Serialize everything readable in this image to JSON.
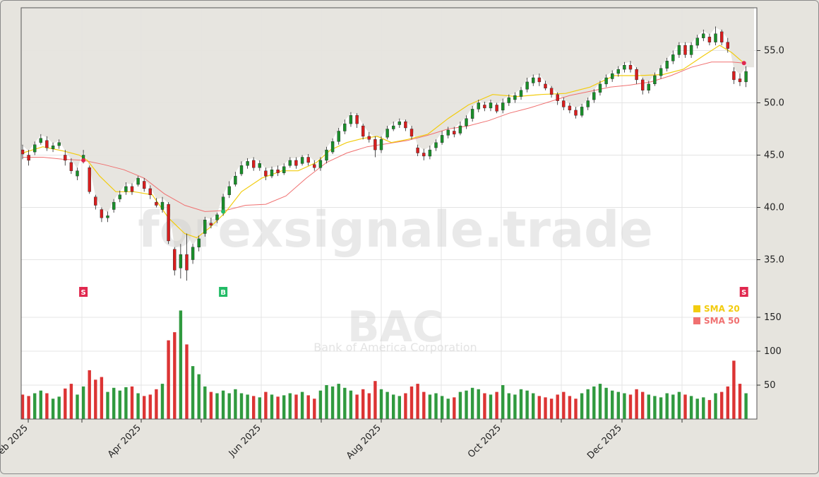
{
  "watermark": {
    "site": "forexsignale.trade",
    "ticker": "BAC",
    "company": "Bank of America Corporation"
  },
  "colors": {
    "background": "#e6e4de",
    "plot_bg": "#ffffff",
    "up": "#1a8f2a",
    "down": "#d81e1e",
    "sma20": "#f2cc0f",
    "sma50": "#f07070",
    "signal_sell": "#e0284e",
    "signal_buy": "#22bb66",
    "grid": "#e4e4e4"
  },
  "chart_data": {
    "type": "candlestick",
    "ticker": "BAC",
    "x_tick_labels": [
      "Feb 2025",
      "Apr 2025",
      "Jun 2025",
      "Aug 2025",
      "Oct 2025",
      "Dec 2025"
    ],
    "price_axis": {
      "ticks": [
        35.0,
        40.0,
        45.0,
        50.0,
        55.0
      ],
      "tick_labels": [
        "35.0",
        "40.0",
        "45.0",
        "50.0",
        "55.0"
      ],
      "range": [
        32.5,
        57.5
      ]
    },
    "volume_axis": {
      "ticks": [
        50,
        100,
        150
      ],
      "tick_labels": [
        "50",
        "100",
        "150"
      ],
      "range": [
        0,
        160
      ]
    },
    "legend": [
      {
        "label": "SMA 20",
        "color": "#f2cc0f"
      },
      {
        "label": "SMA 50",
        "color": "#f07070"
      }
    ],
    "legend_position": "right",
    "sma20_path": [
      [
        0,
        45.2
      ],
      [
        10,
        45.8
      ],
      [
        20,
        45.4
      ],
      [
        28,
        45.0
      ],
      [
        32,
        44.5
      ],
      [
        38,
        43.0
      ],
      [
        46,
        41.5
      ],
      [
        55,
        41.5
      ],
      [
        64,
        41.2
      ],
      [
        72,
        39.0
      ],
      [
        80,
        37.5
      ],
      [
        86,
        37.1
      ],
      [
        92,
        38.0
      ],
      [
        100,
        39.5
      ],
      [
        108,
        41.5
      ],
      [
        118,
        42.8
      ],
      [
        128,
        43.5
      ],
      [
        136,
        43.5
      ],
      [
        145,
        44.3
      ],
      [
        152,
        45.5
      ],
      [
        160,
        46.2
      ],
      [
        168,
        46.6
      ],
      [
        175,
        46.8
      ],
      [
        182,
        46.2
      ],
      [
        190,
        46.5
      ],
      [
        200,
        47.0
      ],
      [
        210,
        48.5
      ],
      [
        220,
        49.8
      ],
      [
        232,
        50.8
      ],
      [
        244,
        50.6
      ],
      [
        256,
        50.8
      ],
      [
        268,
        50.9
      ],
      [
        280,
        51.5
      ],
      [
        292,
        52.6
      ],
      [
        304,
        52.6
      ],
      [
        316,
        52.7
      ],
      [
        326,
        53.2
      ],
      [
        336,
        54.5
      ],
      [
        344,
        55.5
      ],
      [
        350,
        54.8
      ],
      [
        356,
        53.8
      ]
    ],
    "sma50_path": [
      [
        0,
        44.8
      ],
      [
        10,
        44.8
      ],
      [
        20,
        44.6
      ],
      [
        30,
        44.5
      ],
      [
        40,
        44.1
      ],
      [
        50,
        43.6
      ],
      [
        60,
        42.8
      ],
      [
        70,
        41.3
      ],
      [
        80,
        40.2
      ],
      [
        90,
        39.6
      ],
      [
        100,
        39.7
      ],
      [
        110,
        40.2
      ],
      [
        120,
        40.3
      ],
      [
        130,
        41.1
      ],
      [
        140,
        42.8
      ],
      [
        150,
        44.3
      ],
      [
        160,
        45.2
      ],
      [
        170,
        45.8
      ],
      [
        180,
        46.1
      ],
      [
        190,
        46.4
      ],
      [
        200,
        46.9
      ],
      [
        210,
        47.5
      ],
      [
        220,
        47.8
      ],
      [
        230,
        48.3
      ],
      [
        240,
        49.0
      ],
      [
        250,
        49.5
      ],
      [
        260,
        50.1
      ],
      [
        270,
        50.7
      ],
      [
        280,
        51.1
      ],
      [
        290,
        51.5
      ],
      [
        300,
        51.7
      ],
      [
        310,
        52.0
      ],
      [
        320,
        52.6
      ],
      [
        330,
        53.4
      ],
      [
        340,
        53.9
      ],
      [
        350,
        53.9
      ],
      [
        356,
        53.8
      ]
    ],
    "signals": [
      {
        "type": "S",
        "x_index": 30,
        "price": 44.5
      },
      {
        "type": "B",
        "x_index": 99,
        "price": 39.6
      },
      {
        "type": "S",
        "x_index": 356,
        "price": 53.8
      }
    ],
    "candles": [
      [
        0,
        45.5,
        45.1,
        46.0,
        44.6,
        36
      ],
      [
        3,
        45.0,
        44.5,
        45.5,
        44.0,
        34
      ],
      [
        6,
        45.3,
        46.0,
        46.3,
        45.0,
        38
      ],
      [
        9,
        46.2,
        46.6,
        47.0,
        46.0,
        42
      ],
      [
        12,
        46.4,
        45.7,
        46.8,
        45.4,
        38
      ],
      [
        15,
        45.6,
        45.9,
        46.2,
        45.3,
        30
      ],
      [
        18,
        45.9,
        46.2,
        46.5,
        45.6,
        33
      ],
      [
        21,
        45.0,
        44.5,
        45.5,
        44.0,
        45
      ],
      [
        24,
        44.3,
        43.5,
        44.7,
        43.2,
        52
      ],
      [
        27,
        43.0,
        43.5,
        43.8,
        42.6,
        36
      ],
      [
        30,
        44.5,
        45.0,
        45.5,
        44.2,
        48
      ],
      [
        33,
        43.8,
        41.5,
        44.0,
        41.3,
        72
      ],
      [
        36,
        41.0,
        40.2,
        41.2,
        39.8,
        58
      ],
      [
        39,
        39.8,
        39.0,
        40.0,
        38.6,
        62
      ],
      [
        42,
        39.0,
        39.2,
        39.6,
        38.6,
        40
      ],
      [
        45,
        39.8,
        40.5,
        40.8,
        39.5,
        46
      ],
      [
        48,
        40.8,
        41.2,
        41.6,
        40.5,
        42
      ],
      [
        51,
        41.5,
        42.0,
        42.4,
        41.2,
        47
      ],
      [
        54,
        42.0,
        41.5,
        42.3,
        41.2,
        48
      ],
      [
        57,
        42.2,
        42.8,
        43.0,
        42.0,
        38
      ],
      [
        60,
        42.5,
        41.8,
        42.8,
        41.5,
        34
      ],
      [
        63,
        41.8,
        41.2,
        42.1,
        40.8,
        36
      ],
      [
        66,
        40.5,
        40.2,
        40.9,
        40.0,
        44
      ],
      [
        69,
        39.8,
        40.5,
        41.0,
        39.5,
        52
      ],
      [
        72,
        40.3,
        36.8,
        40.5,
        36.5,
        116
      ],
      [
        75,
        36.0,
        34.0,
        36.2,
        33.5,
        128
      ],
      [
        78,
        34.2,
        35.5,
        36.5,
        33.2,
        160
      ],
      [
        81,
        35.5,
        34.0,
        37.5,
        33.0,
        110
      ],
      [
        84,
        35.0,
        36.2,
        36.5,
        34.6,
        78
      ],
      [
        87,
        36.2,
        37.0,
        37.3,
        35.8,
        66
      ],
      [
        90,
        37.5,
        38.8,
        39.1,
        37.2,
        48
      ],
      [
        93,
        38.5,
        38.3,
        39.0,
        38.0,
        40
      ],
      [
        96,
        38.8,
        39.3,
        39.5,
        38.5,
        38
      ],
      [
        99,
        39.5,
        41.0,
        41.3,
        39.2,
        42
      ],
      [
        102,
        41.2,
        42.0,
        42.5,
        40.9,
        38
      ],
      [
        105,
        42.2,
        43.0,
        43.4,
        42.0,
        44
      ],
      [
        108,
        43.2,
        44.0,
        44.4,
        43.0,
        38
      ],
      [
        111,
        44.0,
        44.4,
        44.7,
        43.7,
        36
      ],
      [
        114,
        44.5,
        43.8,
        44.8,
        43.5,
        34
      ],
      [
        117,
        43.8,
        44.2,
        44.5,
        43.5,
        32
      ],
      [
        120,
        43.5,
        43.0,
        43.8,
        42.6,
        40
      ],
      [
        123,
        43.0,
        43.6,
        43.9,
        42.8,
        36
      ],
      [
        126,
        43.6,
        43.3,
        44.0,
        43.0,
        33
      ],
      [
        129,
        43.3,
        43.9,
        44.2,
        43.1,
        35
      ],
      [
        132,
        44.0,
        44.5,
        44.8,
        43.8,
        38
      ],
      [
        135,
        44.5,
        44.0,
        44.8,
        43.7,
        36
      ],
      [
        138,
        44.2,
        44.8,
        45.0,
        44.0,
        40
      ],
      [
        141,
        44.8,
        44.3,
        45.1,
        44.0,
        35
      ],
      [
        144,
        44.1,
        43.8,
        44.5,
        43.5,
        30
      ],
      [
        147,
        43.8,
        44.5,
        44.8,
        43.5,
        42
      ],
      [
        150,
        44.5,
        45.5,
        45.8,
        44.2,
        50
      ],
      [
        153,
        45.3,
        46.3,
        46.6,
        45.1,
        48
      ],
      [
        156,
        46.3,
        47.3,
        47.6,
        46.0,
        52
      ],
      [
        159,
        47.3,
        48.0,
        48.4,
        47.0,
        46
      ],
      [
        162,
        48.0,
        48.8,
        49.1,
        47.7,
        42
      ],
      [
        165,
        48.8,
        48.0,
        49.0,
        47.6,
        36
      ],
      [
        168,
        47.8,
        46.8,
        48.0,
        46.5,
        44
      ],
      [
        171,
        46.8,
        46.5,
        47.2,
        46.2,
        38
      ],
      [
        174,
        46.5,
        45.5,
        46.8,
        44.8,
        56
      ],
      [
        177,
        45.5,
        46.5,
        46.8,
        45.2,
        44
      ],
      [
        180,
        46.7,
        47.5,
        47.8,
        46.5,
        40
      ],
      [
        183,
        47.5,
        47.8,
        48.2,
        47.3,
        36
      ],
      [
        186,
        47.9,
        48.2,
        48.5,
        47.6,
        34
      ],
      [
        189,
        48.2,
        47.6,
        48.4,
        47.3,
        38
      ],
      [
        192,
        47.5,
        46.8,
        47.8,
        46.5,
        48
      ],
      [
        195,
        45.7,
        45.2,
        46.0,
        44.9,
        52
      ],
      [
        198,
        45.2,
        44.9,
        45.6,
        44.5,
        40
      ],
      [
        201,
        44.9,
        45.5,
        45.9,
        44.6,
        36
      ],
      [
        204,
        45.7,
        46.2,
        46.5,
        45.4,
        38
      ],
      [
        207,
        46.2,
        46.9,
        47.3,
        46.0,
        34
      ],
      [
        210,
        46.9,
        47.4,
        47.7,
        46.6,
        30
      ],
      [
        213,
        47.3,
        47.0,
        47.7,
        46.7,
        32
      ],
      [
        216,
        47.1,
        47.8,
        48.2,
        46.9,
        40
      ],
      [
        219,
        47.8,
        48.5,
        48.8,
        47.5,
        42
      ],
      [
        222,
        48.5,
        49.4,
        49.7,
        48.2,
        46
      ],
      [
        225,
        49.4,
        50.0,
        50.3,
        49.1,
        44
      ],
      [
        228,
        49.8,
        49.5,
        50.1,
        49.2,
        38
      ],
      [
        231,
        49.5,
        50.0,
        50.3,
        49.2,
        36
      ],
      [
        234,
        49.8,
        49.2,
        50.0,
        49.0,
        40
      ],
      [
        237,
        49.3,
        50.0,
        50.4,
        49.0,
        50
      ],
      [
        240,
        50.0,
        50.5,
        50.8,
        49.7,
        38
      ],
      [
        243,
        50.3,
        50.7,
        51.0,
        50.0,
        36
      ],
      [
        246,
        50.6,
        51.2,
        51.5,
        50.3,
        44
      ],
      [
        249,
        51.3,
        52.0,
        52.4,
        51.0,
        42
      ],
      [
        252,
        51.9,
        52.4,
        52.7,
        51.6,
        38
      ],
      [
        255,
        52.4,
        52.0,
        52.8,
        51.6,
        34
      ],
      [
        258,
        51.8,
        51.4,
        52.1,
        51.2,
        32
      ],
      [
        261,
        51.4,
        50.8,
        51.6,
        50.5,
        30
      ],
      [
        264,
        50.8,
        50.2,
        51.0,
        49.8,
        36
      ],
      [
        267,
        50.2,
        49.6,
        50.5,
        49.3,
        40
      ],
      [
        270,
        49.7,
        49.3,
        50.0,
        49.0,
        34
      ],
      [
        273,
        49.3,
        48.8,
        49.6,
        48.5,
        30
      ],
      [
        276,
        48.8,
        49.6,
        49.9,
        48.6,
        38
      ],
      [
        279,
        49.6,
        50.2,
        50.5,
        49.3,
        44
      ],
      [
        282,
        50.3,
        51.0,
        51.3,
        50.0,
        48
      ],
      [
        285,
        51.0,
        51.8,
        52.1,
        50.7,
        52
      ],
      [
        288,
        51.8,
        52.4,
        52.7,
        51.5,
        46
      ],
      [
        291,
        52.3,
        52.8,
        53.1,
        52.0,
        42
      ],
      [
        294,
        52.8,
        53.2,
        53.5,
        52.5,
        40
      ],
      [
        297,
        53.2,
        53.6,
        53.9,
        52.9,
        38
      ],
      [
        300,
        53.6,
        53.2,
        54.0,
        52.9,
        36
      ],
      [
        303,
        53.2,
        52.2,
        53.4,
        51.8,
        44
      ],
      [
        306,
        52.2,
        51.2,
        52.4,
        50.8,
        40
      ],
      [
        309,
        51.2,
        51.8,
        52.1,
        50.9,
        36
      ],
      [
        312,
        51.8,
        52.6,
        52.9,
        51.6,
        34
      ],
      [
        315,
        52.6,
        53.3,
        53.6,
        52.3,
        32
      ],
      [
        318,
        53.3,
        54.0,
        54.3,
        53.0,
        38
      ],
      [
        321,
        54.0,
        54.6,
        55.0,
        53.7,
        36
      ],
      [
        324,
        54.6,
        55.5,
        55.8,
        54.3,
        40
      ],
      [
        327,
        55.5,
        54.6,
        55.8,
        54.3,
        36
      ],
      [
        330,
        54.6,
        55.5,
        55.8,
        54.3,
        34
      ],
      [
        333,
        55.5,
        56.2,
        56.5,
        55.2,
        30
      ],
      [
        336,
        56.2,
        56.6,
        57.0,
        55.9,
        32
      ],
      [
        339,
        56.3,
        55.8,
        56.6,
        55.5,
        28
      ],
      [
        342,
        55.8,
        56.6,
        57.3,
        55.5,
        38
      ],
      [
        345,
        56.8,
        55.8,
        57.0,
        55.5,
        40
      ],
      [
        348,
        55.8,
        55.2,
        56.2,
        54.8,
        48
      ],
      [
        351,
        53.0,
        52.2,
        53.4,
        51.8,
        86
      ],
      [
        354,
        52.3,
        52.0,
        52.8,
        51.6,
        52
      ],
      [
        357,
        52.0,
        53.0,
        53.5,
        51.5,
        38
      ]
    ]
  }
}
